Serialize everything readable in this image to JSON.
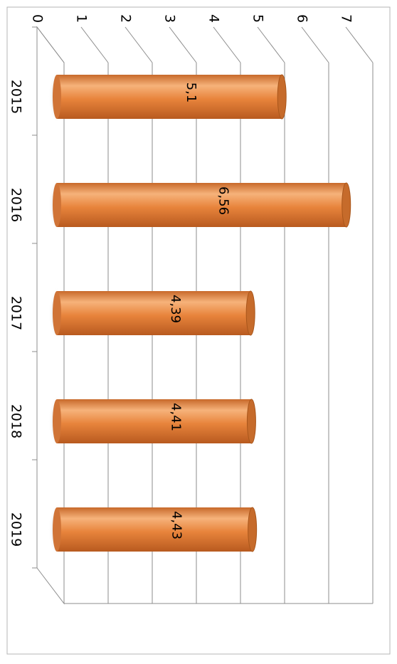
{
  "chart_data": {
    "type": "bar",
    "orientation": "rotated-90-clockwise",
    "categories": [
      "2015",
      "2016",
      "2017",
      "2018",
      "2019"
    ],
    "values": [
      5.1,
      6.56,
      4.39,
      4.41,
      4.43
    ],
    "data_labels": [
      "5,1",
      "6,56",
      "4,39",
      "4,41",
      "4,43"
    ],
    "y_ticks": [
      "0",
      "1",
      "2",
      "3",
      "4",
      "5",
      "6",
      "7"
    ],
    "ylim": [
      0,
      7
    ],
    "grid": true,
    "legend": "none",
    "bar_style": "cylinder",
    "colors": {
      "bar": "#e8843c",
      "bar_light": "#f6b27a",
      "bar_dark": "#b85a1f",
      "grid": "#8c8c8c",
      "text": "#000000"
    }
  }
}
